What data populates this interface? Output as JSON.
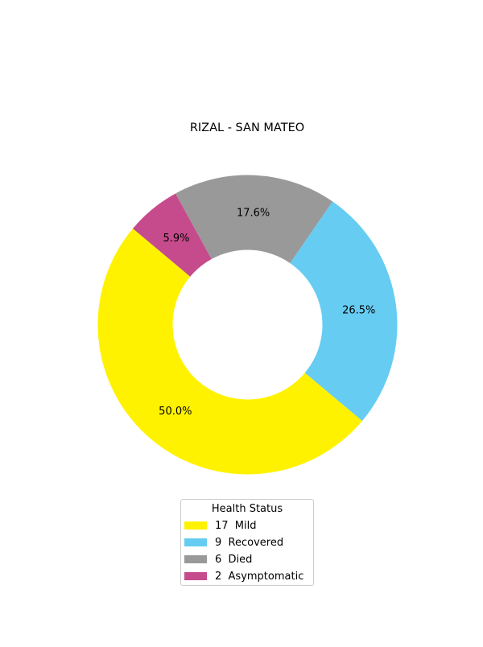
{
  "chart_data": {
    "type": "pie",
    "title": "RIZAL - SAN MATEO",
    "style": "donut",
    "slices": [
      {
        "label": "Mild",
        "count": 17,
        "legend_text": "17  Mild",
        "percent_label": "50.0%",
        "value": 50.0,
        "color": "#FFF200"
      },
      {
        "label": "Recovered",
        "count": 9,
        "legend_text": "9  Recovered",
        "percent_label": "26.5%",
        "value": 26.5,
        "color": "#66CCF2"
      },
      {
        "label": "Died",
        "count": 6,
        "legend_text": "6  Died",
        "percent_label": "17.6%",
        "value": 17.6,
        "color": "#999999"
      },
      {
        "label": "Asymptomatic",
        "count": 2,
        "legend_text": "2  Asymptomatic",
        "percent_label": "5.9%",
        "value": 5.9,
        "color": "#C64B8C"
      }
    ],
    "legend": {
      "title": "Health Status",
      "placement": "bottom-center"
    }
  }
}
